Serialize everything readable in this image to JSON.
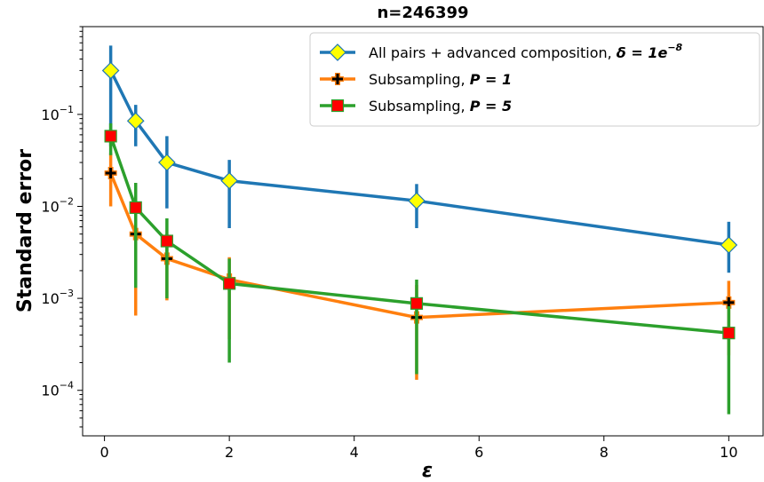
{
  "chart_data": {
    "type": "line",
    "title": "n=246399",
    "xlabel": "ε",
    "ylabel": "Standard error",
    "x": [
      0.1,
      0.5,
      1,
      2,
      5,
      10
    ],
    "xlim": [
      -0.35,
      10.55
    ],
    "ylim": [
      3.2e-05,
      0.9
    ],
    "yscale": "log",
    "xticks": [
      0,
      2,
      4,
      6,
      8,
      10
    ],
    "yticks": [
      {
        "value": 0.1,
        "base": "10",
        "exp": "−1"
      },
      {
        "value": 0.01,
        "base": "10",
        "exp": "−2"
      },
      {
        "value": 0.001,
        "base": "10",
        "exp": "−3"
      },
      {
        "value": 0.0001,
        "base": "10",
        "exp": "−4"
      }
    ],
    "grid": false,
    "legend_position": "top-right",
    "series": [
      {
        "name": "All pairs + advanced composition, δ = 1e−8",
        "legend": {
          "plain": "All pairs + advanced composition, ",
          "math": "δ = 1e",
          "sup": "−8"
        },
        "color": "#1f77b4",
        "marker": "diamond",
        "marker_color": "#ffff00",
        "values": [
          0.3,
          0.085,
          0.03,
          0.019,
          0.0115,
          0.0038
        ],
        "err_low": [
          0.045,
          0.045,
          0.0095,
          0.0058,
          0.0058,
          0.0019
        ],
        "err_high": [
          0.56,
          0.127,
          0.058,
          0.032,
          0.0175,
          0.0068
        ]
      },
      {
        "name": "Subsampling, P = 1",
        "legend": {
          "plain": "Subsampling, ",
          "math": "P = 1",
          "sup": ""
        },
        "color": "#ff7f0e",
        "marker": "plus",
        "marker_color": "#000000",
        "values": [
          0.023,
          0.005,
          0.0027,
          0.0016,
          0.00062,
          0.0009
        ],
        "err_low": [
          0.01,
          0.00065,
          0.00095,
          0.00036,
          0.00013,
          0.00024
        ],
        "err_high": [
          0.038,
          0.0095,
          0.005,
          0.0028,
          0.0014,
          0.00155
        ]
      },
      {
        "name": "Subsampling, P = 5",
        "legend": {
          "plain": "Subsampling, ",
          "math": "P = 5",
          "sup": ""
        },
        "color": "#2ca02c",
        "marker": "square",
        "marker_color": "#ff0000",
        "values": [
          0.058,
          0.0097,
          0.0042,
          0.00145,
          0.00088,
          0.00042
        ],
        "err_low": [
          0.036,
          0.0013,
          0.001,
          0.0002,
          0.00015,
          5.5e-05
        ],
        "err_high": [
          0.08,
          0.018,
          0.0074,
          0.0027,
          0.0016,
          0.00082
        ]
      }
    ]
  }
}
